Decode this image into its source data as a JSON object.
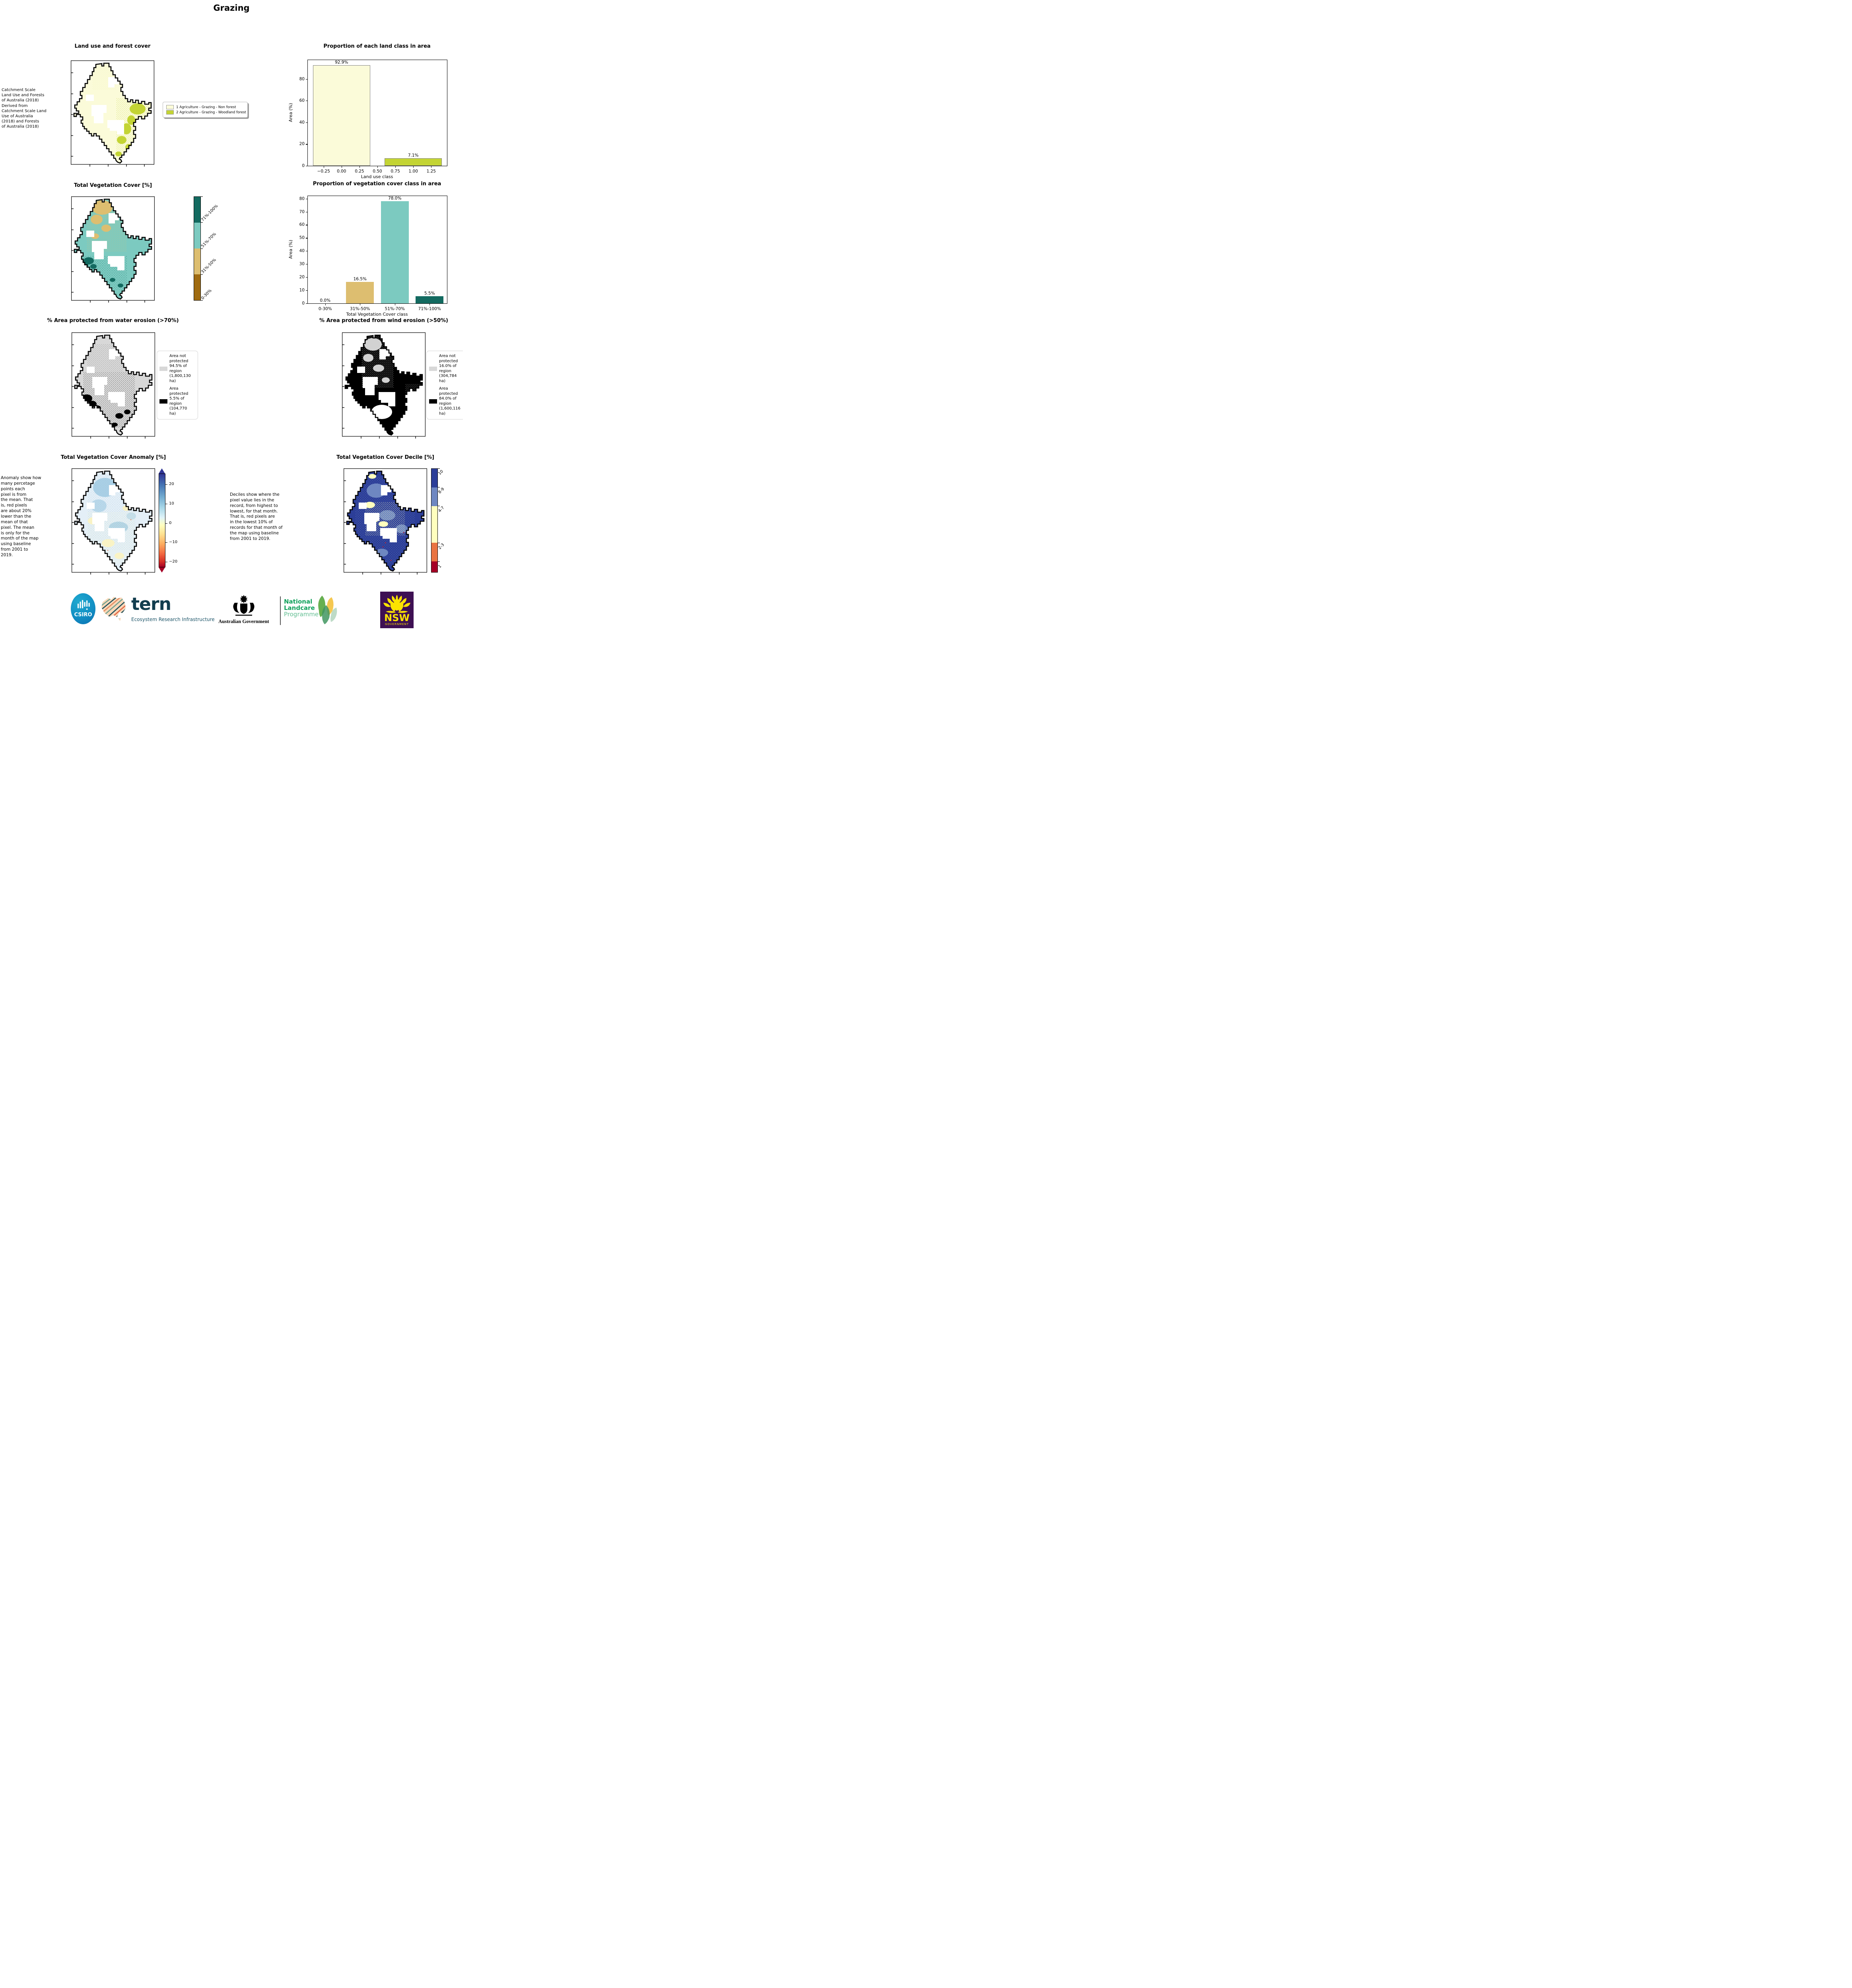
{
  "page_title": "Grazing",
  "panels": {
    "land_use": {
      "title": "Land use and forest cover",
      "note": " Catchment Scale\nLand Use and Forests\nof Australia (2018)\nDerived from\nCatchment Scale Land\nUse of Australia\n(2018) and Forests\nof Australia (2018)",
      "legend": [
        {
          "label": "1 Agriculture - Grazing - Non forest",
          "color": "#FBFBD9"
        },
        {
          "label": "2 Agriculture - Grazing - Woodland forest",
          "color": "#C3D434"
        }
      ]
    },
    "veg_cover": {
      "title": "Total Vegetation Cover [%]",
      "colorbar": [
        {
          "label": "0-30%",
          "color": "#9F6B11"
        },
        {
          "label": "31%-50%",
          "color": "#DDBE70"
        },
        {
          "label": "51%-70%",
          "color": "#7CCAC0"
        },
        {
          "label": "71%-100%",
          "color": "#136A60"
        }
      ]
    },
    "water_erosion": {
      "title": "% Area protected from water erosion (>70%)",
      "legend": [
        {
          "label": "Area not\nprotected\n94.5% of\nregion\n(1,800,130\nha)",
          "color": "#D8D8D8"
        },
        {
          "label": "Area\nprotected\n5.5% of\nregion\n(104,770\nha)",
          "color": "#000000"
        }
      ]
    },
    "wind_erosion": {
      "title": "% Area protected from wind erosion (>50%)",
      "legend": [
        {
          "label": "Area not\nprotected\n16.0% of\nregion\n(304,784\nha)",
          "color": "#D8D8D8"
        },
        {
          "label": "Area\nprotected\n84.0% of\nregion\n(1,600,116\nha)",
          "color": "#000000"
        }
      ]
    },
    "anomaly": {
      "title": "Total Vegetation Cover Anomaly [%]",
      "note": "Anomaly show how\nmany percetage\npoints each\npixel is from\nthe mean. That\nis, red pixels\nare about 20%\nlower than the\nmean of that\npixel. The mean\nis only for the\nmonth of the map\nusing baseline\nfrom 2001 to\n2019.",
      "colorbar_ticks": [
        "20",
        "10",
        "0",
        "−10",
        "−20"
      ],
      "gradient_top_to_bottom": [
        "#313695",
        "#4575b4",
        "#74add1",
        "#abd9e9",
        "#e0f3f8",
        "#ffffbf",
        "#fee090",
        "#fdae61",
        "#f46d43",
        "#d73027",
        "#a50026"
      ]
    },
    "decile": {
      "title": "Total Vegetation Cover Decile [%]",
      "note": "Deciles show where the\npixel value lies in the\nrecord, from highest to\nlowest, for that month.\nThat is, red pixels are\nin the lowest 10% of\nrecords for that month of\nthe map using baseline\nfrom 2001 to 2019.",
      "colorbar_top_to_bottom": [
        {
          "label": "10",
          "color": "#2C3E98"
        },
        {
          "label": "8-9",
          "color": "#6E87C1"
        },
        {
          "label": "4-7",
          "color": "#FFFFBE"
        },
        {
          "label": "2-3",
          "color": "#E97442"
        },
        {
          "label": "1",
          "color": "#A50026"
        }
      ]
    }
  },
  "chart_data": [
    {
      "type": "bar",
      "title": "Proportion of each land class in area",
      "xlabel": "Land use class",
      "ylabel": "Area (%)",
      "x_mode": "numeric",
      "xlim": [
        -0.47,
        1.47
      ],
      "ylim": [
        0,
        97.5
      ],
      "yticks": [
        0,
        20,
        40,
        60,
        80
      ],
      "xticks": [
        -0.25,
        0.0,
        0.25,
        0.5,
        0.75,
        1.0,
        1.25
      ],
      "xtick_labels": [
        "−0.25",
        "0.00",
        "0.25",
        "0.50",
        "0.75",
        "1.00",
        "1.25"
      ],
      "bar_width": 0.8,
      "bars": [
        {
          "x": 0,
          "value": 92.9,
          "label": "92.9%",
          "color": "#FBFBD9",
          "edge": "#808080"
        },
        {
          "x": 1,
          "value": 7.1,
          "label": "7.1%",
          "color": "#C3D434",
          "edge": "#808080"
        }
      ]
    },
    {
      "type": "bar",
      "title": "Proportion of vegetation cover class in area",
      "xlabel": "Total Vegetation Cover class",
      "ylabel": "Area (%)",
      "x_mode": "categorical",
      "categories": [
        "0-30%",
        "31%-50%",
        "51%-70%",
        "71%-100%"
      ],
      "ylim": [
        0,
        82
      ],
      "yticks": [
        0,
        10,
        20,
        30,
        40,
        50,
        60,
        70,
        80
      ],
      "bar_width": 0.8,
      "bars": [
        {
          "x": 0,
          "value": 0.0,
          "label": "0.0%",
          "color": "#9F6B11"
        },
        {
          "x": 1,
          "value": 16.5,
          "label": "16.5%",
          "color": "#DDBE70"
        },
        {
          "x": 2,
          "value": 78.0,
          "label": "78.0%",
          "color": "#7CCAC0"
        },
        {
          "x": 3,
          "value": 5.5,
          "label": "5.5%",
          "color": "#136A60"
        }
      ]
    }
  ],
  "footer": {
    "csiro_label": "CSIRO",
    "tern_label": "tern",
    "tern_sub": "Ecosystem Research Infrastructure",
    "aus_gov": "Australian Government",
    "nlp_line1": "National",
    "nlp_line2": "Landcare",
    "nlp_line3": "Programme",
    "nsw": "NSW",
    "nsw_sub": "GOVERNMENT"
  }
}
